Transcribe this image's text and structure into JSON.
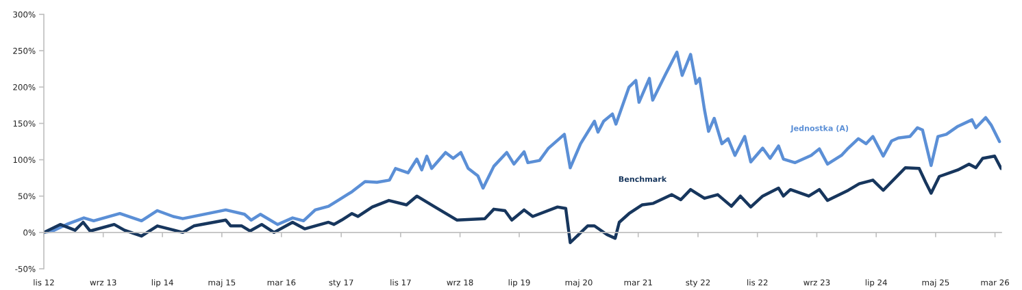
{
  "chart_data": {
    "type": "line",
    "line_style": "solid",
    "marker": "none",
    "legend": false,
    "xlim": [
      "2012-11-01",
      "2026-04-03"
    ],
    "xticks": [
      {
        "value": "2012-11-01",
        "label": "lis 12"
      },
      {
        "value": "2013-09-01",
        "label": "wrz 13"
      },
      {
        "value": "2014-07-01",
        "label": "lip 14"
      },
      {
        "value": "2015-05-01",
        "label": "maj 15"
      },
      {
        "value": "2016-03-01",
        "label": "mar 16"
      },
      {
        "value": "2017-01-01",
        "label": "sty 17"
      },
      {
        "value": "2017-11-01",
        "label": "lis 17"
      },
      {
        "value": "2018-09-01",
        "label": "wrz 18"
      },
      {
        "value": "2019-07-01",
        "label": "lip 19"
      },
      {
        "value": "2020-05-01",
        "label": "maj 20"
      },
      {
        "value": "2021-03-01",
        "label": "mar 21"
      },
      {
        "value": "2022-01-01",
        "label": "sty 22"
      },
      {
        "value": "2022-11-01",
        "label": "lis 22"
      },
      {
        "value": "2023-09-01",
        "label": "wrz 23"
      },
      {
        "value": "2024-07-01",
        "label": "lip 24"
      },
      {
        "value": "2025-05-01",
        "label": "maj 25"
      },
      {
        "value": "2026-03-01",
        "label": "mar 26"
      }
    ],
    "ylim": [
      -50,
      300
    ],
    "yticks": [
      {
        "value": -50,
        "label": "-50%"
      },
      {
        "value": 0,
        "label": "0%"
      },
      {
        "value": 50,
        "label": "50%"
      },
      {
        "value": 100,
        "label": "100%"
      },
      {
        "value": 150,
        "label": "150%"
      },
      {
        "value": 200,
        "label": "200%"
      },
      {
        "value": 250,
        "label": "250%"
      },
      {
        "value": 300,
        "label": "300%"
      }
    ],
    "series": [
      {
        "name": "Jednostka (A)",
        "color": "#5b8fd6",
        "x": [
          "2012-11-01",
          "2012-12-16",
          "2013-02-25",
          "2013-05-25",
          "2013-07-14",
          "2013-11-25",
          "2014-03-16",
          "2014-06-05",
          "2014-08-25",
          "2014-10-13",
          "2015-05-21",
          "2015-08-25",
          "2015-09-28",
          "2015-11-14",
          "2016-02-10",
          "2016-04-27",
          "2016-06-22",
          "2016-08-21",
          "2016-10-28",
          "2016-12-15",
          "2017-02-25",
          "2017-05-03",
          "2017-07-03",
          "2017-09-05",
          "2017-10-06",
          "2017-12-09",
          "2018-01-23",
          "2018-02-17",
          "2018-03-15",
          "2018-04-09",
          "2018-06-19",
          "2018-07-28",
          "2018-09-05",
          "2018-10-13",
          "2018-12-01",
          "2018-12-28",
          "2019-02-21",
          "2019-04-28",
          "2019-06-04",
          "2019-07-26",
          "2019-08-14",
          "2019-10-13",
          "2019-11-28",
          "2020-02-17",
          "2020-03-18",
          "2020-05-10",
          "2020-07-20",
          "2020-08-07",
          "2020-09-05",
          "2020-10-20",
          "2020-11-07",
          "2021-01-13",
          "2021-02-17",
          "2021-03-05",
          "2021-04-27",
          "2021-05-14",
          "2021-07-16",
          "2021-09-15",
          "2021-10-12",
          "2021-11-24",
          "2021-12-22",
          "2022-01-09",
          "2022-02-03",
          "2022-02-24",
          "2022-03-25",
          "2022-05-03",
          "2022-06-04",
          "2022-07-09",
          "2022-08-28",
          "2022-09-28",
          "2022-11-28",
          "2023-01-05",
          "2023-02-17",
          "2023-03-14",
          "2023-05-13",
          "2023-08-03",
          "2023-09-14",
          "2023-10-26",
          "2024-01-05",
          "2024-02-09",
          "2024-04-01",
          "2024-05-10",
          "2024-06-14",
          "2024-08-06",
          "2024-09-18",
          "2024-10-22",
          "2024-12-21",
          "2025-01-28",
          "2025-02-23",
          "2025-04-08",
          "2025-05-13",
          "2025-06-25",
          "2025-08-23",
          "2025-11-03",
          "2025-11-23",
          "2026-01-12",
          "2026-02-09",
          "2026-03-24"
        ],
        "values": [
          0,
          2,
          11,
          20,
          16,
          26,
          16,
          30,
          22,
          19,
          31,
          25,
          17,
          25,
          11,
          20,
          16,
          31,
          36,
          44,
          56,
          70,
          69,
          72,
          88,
          82,
          101,
          86,
          105,
          88,
          110,
          102,
          110,
          88,
          78,
          61,
          91,
          110,
          94,
          111,
          96,
          99,
          116,
          135,
          89,
          122,
          153,
          138,
          153,
          163,
          149,
          200,
          209,
          179,
          212,
          182,
          216,
          248,
          216,
          245,
          205,
          212,
          169,
          139,
          157,
          122,
          129,
          106,
          132,
          97,
          116,
          102,
          119,
          101,
          96,
          106,
          115,
          94,
          106,
          116,
          129,
          122,
          132,
          105,
          126,
          130,
          132,
          144,
          141,
          92,
          132,
          135,
          146,
          155,
          144,
          158,
          148,
          125
        ]
      },
      {
        "name": "Benchmark",
        "color": "#17365d",
        "x": [
          "2012-11-01",
          "2013-01-24",
          "2013-04-10",
          "2013-05-21",
          "2013-06-26",
          "2013-10-27",
          "2013-12-19",
          "2014-03-16",
          "2014-06-05",
          "2014-10-13",
          "2014-12-09",
          "2015-05-21",
          "2015-06-15",
          "2015-08-11",
          "2015-09-22",
          "2015-11-21",
          "2016-01-23",
          "2016-04-27",
          "2016-06-28",
          "2016-10-28",
          "2016-11-25",
          "2017-01-03",
          "2017-02-25",
          "2017-03-28",
          "2017-06-09",
          "2017-09-02",
          "2017-12-01",
          "2018-01-23",
          "2018-04-20",
          "2018-08-17",
          "2019-01-06",
          "2019-02-21",
          "2019-04-19",
          "2019-05-24",
          "2019-07-26",
          "2019-09-08",
          "2020-01-13",
          "2020-02-24",
          "2020-03-18",
          "2020-06-15",
          "2020-07-20",
          "2020-09-22",
          "2020-11-03",
          "2020-11-24",
          "2021-01-13",
          "2021-03-22",
          "2021-05-17",
          "2021-08-20",
          "2021-10-05",
          "2021-11-24",
          "2022-02-03",
          "2022-04-12",
          "2022-06-21",
          "2022-08-06",
          "2022-09-28",
          "2022-11-28",
          "2023-02-17",
          "2023-03-14",
          "2023-04-19",
          "2023-07-22",
          "2023-09-14",
          "2023-10-26",
          "2024-02-09",
          "2024-04-05",
          "2024-06-14",
          "2024-08-06",
          "2024-11-27",
          "2025-02-06",
          "2025-03-11",
          "2025-04-08",
          "2025-05-20",
          "2025-08-23",
          "2025-10-19",
          "2025-11-23",
          "2025-12-28",
          "2026-02-27",
          "2026-04-01"
        ],
        "values": [
          0,
          11,
          3,
          14,
          2,
          11,
          3,
          -5,
          9,
          0,
          9,
          17,
          9,
          9,
          2,
          11,
          0,
          14,
          5,
          14,
          11,
          17,
          26,
          22,
          35,
          44,
          38,
          50,
          36,
          17,
          19,
          32,
          30,
          17,
          31,
          22,
          35,
          33,
          -14,
          9,
          9,
          -3,
          -8,
          14,
          26,
          38,
          40,
          52,
          45,
          59,
          47,
          52,
          36,
          50,
          35,
          50,
          61,
          50,
          59,
          50,
          59,
          44,
          58,
          67,
          72,
          58,
          89,
          88,
          69,
          54,
          77,
          86,
          94,
          89,
          102,
          105,
          88
        ]
      }
    ]
  }
}
